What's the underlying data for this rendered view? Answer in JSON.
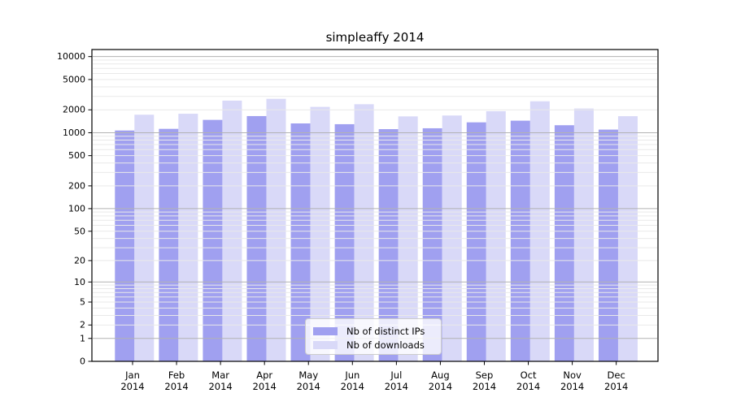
{
  "chart_data": {
    "type": "bar",
    "title": "simpleaffy 2014",
    "categories": [
      "Jan 2014",
      "Feb 2014",
      "Mar 2014",
      "Apr 2014",
      "May 2014",
      "Jun 2014",
      "Jul 2014",
      "Aug 2014",
      "Sep 2014",
      "Oct 2014",
      "Nov 2014",
      "Dec 2014"
    ],
    "series": [
      {
        "name": "Nb of distinct IPs",
        "color": "#a0a0f0",
        "values": [
          1070,
          1125,
          1475,
          1655,
          1325,
          1295,
          1115,
          1145,
          1370,
          1440,
          1255,
          1100
        ]
      },
      {
        "name": "Nb of downloads",
        "color": "#d9d9f8",
        "values": [
          1725,
          1775,
          2640,
          2790,
          2185,
          2370,
          1640,
          1685,
          1920,
          2590,
          2080,
          1650
        ]
      }
    ],
    "xlabel": "",
    "ylabel": "",
    "yscale": "log1p",
    "ylim": [
      0,
      12400
    ],
    "y_ticks": [
      0,
      1,
      2,
      5,
      10,
      20,
      50,
      100,
      200,
      500,
      1000,
      2000,
      5000,
      10000
    ],
    "grid": {
      "major_at": [
        1,
        10,
        100,
        1000,
        10000
      ],
      "minor_bases": [
        1,
        10,
        100,
        1000
      ],
      "major_color": "#b2b2b2",
      "minor_color": "#e9e9e9"
    },
    "legend": {
      "position": "lower center"
    }
  }
}
